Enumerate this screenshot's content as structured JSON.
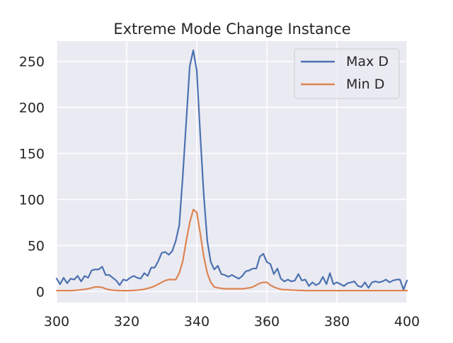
{
  "chart_data": {
    "type": "line",
    "title": "Extreme Mode Change Instance",
    "xlabel": "",
    "ylabel": "",
    "xlim": [
      300,
      400
    ],
    "ylim": [
      -12,
      272
    ],
    "x_ticks": [
      300,
      320,
      340,
      360,
      380,
      400
    ],
    "y_ticks": [
      0,
      50,
      100,
      150,
      200,
      250
    ],
    "grid": true,
    "legend_position": "upper right",
    "style": "seaborn-darkgrid",
    "series": [
      {
        "name": "Max D",
        "color": "#4c72b0",
        "x": [
          300,
          301,
          302,
          303,
          304,
          305,
          306,
          307,
          308,
          309,
          310,
          311,
          312,
          313,
          314,
          315,
          316,
          317,
          318,
          319,
          320,
          321,
          322,
          323,
          324,
          325,
          326,
          327,
          328,
          329,
          330,
          331,
          332,
          333,
          334,
          335,
          336,
          337,
          338,
          339,
          340,
          341,
          342,
          343,
          344,
          345,
          346,
          347,
          348,
          349,
          350,
          351,
          352,
          353,
          354,
          355,
          356,
          357,
          358,
          359,
          360,
          361,
          362,
          363,
          364,
          365,
          366,
          367,
          368,
          369,
          370,
          371,
          372,
          373,
          374,
          375,
          376,
          377,
          378,
          379,
          380,
          381,
          382,
          383,
          384,
          385,
          386,
          387,
          388,
          389,
          390,
          391,
          392,
          393,
          394,
          395,
          396,
          397,
          398,
          399,
          400
        ],
        "values": [
          14,
          8,
          15,
          9,
          14,
          13,
          17,
          11,
          17,
          15,
          23,
          24,
          24,
          27,
          18,
          18,
          15,
          12,
          7,
          13,
          12,
          15,
          17,
          15,
          14,
          20,
          17,
          26,
          26,
          33,
          42,
          43,
          40,
          44,
          55,
          72,
          125,
          185,
          245,
          262,
          240,
          170,
          105,
          55,
          32,
          24,
          28,
          19,
          18,
          16,
          18,
          16,
          14,
          17,
          22,
          23,
          25,
          25,
          38,
          41,
          32,
          30,
          19,
          25,
          14,
          11,
          13,
          11,
          12,
          19,
          12,
          13,
          6,
          10,
          7,
          9,
          16,
          8,
          20,
          8,
          10,
          8,
          6,
          9,
          10,
          11,
          6,
          5,
          10,
          4,
          10,
          11,
          10,
          11,
          13,
          10,
          12,
          13,
          13,
          2,
          12
        ]
      },
      {
        "name": "Min D",
        "color": "#dd8452",
        "x": [
          300,
          301,
          302,
          303,
          304,
          305,
          306,
          307,
          308,
          309,
          310,
          311,
          312,
          313,
          314,
          315,
          316,
          317,
          318,
          319,
          320,
          321,
          322,
          323,
          324,
          325,
          326,
          327,
          328,
          329,
          330,
          331,
          332,
          333,
          334,
          335,
          336,
          337,
          338,
          339,
          340,
          341,
          342,
          343,
          344,
          345,
          346,
          347,
          348,
          349,
          350,
          351,
          352,
          353,
          354,
          355,
          356,
          357,
          358,
          359,
          360,
          361,
          362,
          363,
          364,
          365,
          366,
          367,
          368,
          369,
          370,
          371,
          372,
          373,
          374,
          375,
          376,
          377,
          378,
          379,
          380,
          381,
          382,
          383,
          384,
          385,
          386,
          387,
          388,
          389,
          390,
          391,
          392,
          393,
          394,
          395,
          396,
          397,
          398,
          399,
          400
        ],
        "values": [
          1,
          1,
          1,
          1,
          1,
          1.2,
          1.5,
          2,
          2.5,
          3,
          4,
          5,
          5,
          4.5,
          3,
          2,
          1.5,
          1.2,
          1,
          1,
          1,
          1,
          1.2,
          1.5,
          2,
          2.5,
          3.5,
          4.5,
          6,
          8,
          10,
          12,
          13,
          13,
          13,
          20,
          33,
          55,
          75,
          89,
          86,
          63,
          38,
          20,
          10,
          5,
          4,
          3.5,
          3,
          3,
          3,
          3,
          3,
          3,
          3.5,
          4,
          5,
          7,
          9,
          10,
          10,
          7,
          5,
          3.5,
          2.5,
          2,
          2,
          1.5,
          1.5,
          1.2,
          1.2,
          1,
          1,
          1,
          1,
          1,
          1,
          1,
          1,
          1,
          1,
          1,
          1,
          1,
          1,
          1,
          1,
          1,
          1,
          1,
          1,
          1,
          1,
          1,
          1,
          1,
          1,
          1,
          1,
          1,
          1
        ]
      }
    ]
  }
}
